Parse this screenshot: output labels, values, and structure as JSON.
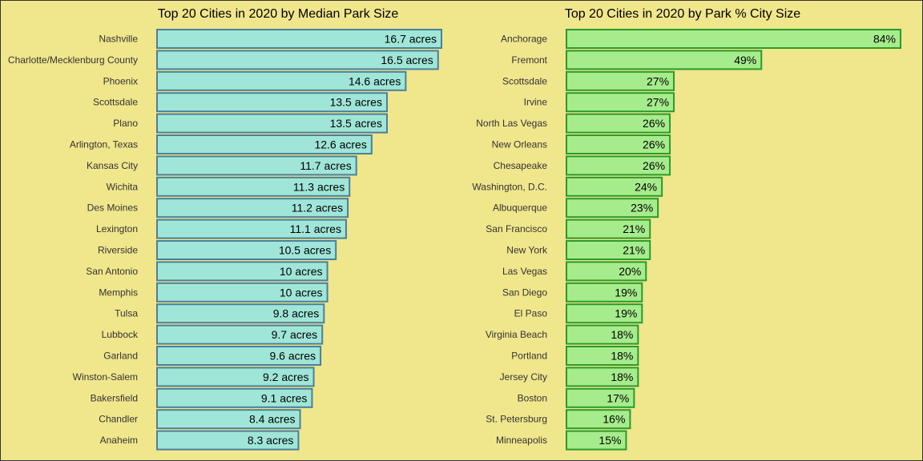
{
  "chart_data": [
    {
      "type": "bar",
      "orientation": "horizontal",
      "title": "Top 20 Cities in 2020 by Median Park Size",
      "categories": [
        "Nashville",
        "Charlotte/Mecklenburg County",
        "Phoenix",
        "Scottsdale",
        "Plano",
        "Arlington, Texas",
        "Kansas City",
        "Wichita",
        "Des Moines",
        "Lexington",
        "Riverside",
        "San Antonio",
        "Memphis",
        "Tulsa",
        "Lubbock",
        "Garland",
        "Winston-Salem",
        "Bakersfield",
        "Chandler",
        "Anaheim"
      ],
      "values": [
        16.7,
        16.5,
        14.6,
        13.5,
        13.5,
        12.6,
        11.7,
        11.3,
        11.2,
        11.1,
        10.5,
        10,
        10,
        9.8,
        9.7,
        9.6,
        9.2,
        9.1,
        8.4,
        8.3
      ],
      "value_labels": [
        "16.7 acres",
        "16.5 acres",
        "14.6 acres",
        "13.5 acres",
        "13.5 acres",
        "12.6 acres",
        "11.7 acres",
        "11.3 acres",
        "11.2 acres",
        "11.1 acres",
        "10.5 acres",
        "10 acres",
        "10 acres",
        "9.8 acres",
        "9.7 acres",
        "9.6 acres",
        "9.2 acres",
        "9.1 acres",
        "8.4 acres",
        "8.3 acres"
      ],
      "xlim": [
        0,
        16.7
      ],
      "grid": false,
      "colors": {
        "fill": "#a0e6d8",
        "stroke": "#4a7f9a"
      }
    },
    {
      "type": "bar",
      "orientation": "horizontal",
      "title": "Top 20 Cities in 2020 by Park % City Size",
      "categories": [
        "Anchorage",
        "Fremont",
        "Scottsdale",
        "Irvine",
        "North Las Vegas",
        "New Orleans",
        "Chesapeake",
        "Washington, D.C.",
        "Albuquerque",
        "San Francisco",
        "New York",
        "Las Vegas",
        "San Diego",
        "El Paso",
        "Virginia Beach",
        "Portland",
        "Jersey City",
        "Boston",
        "St. Petersburg",
        "Minneapolis"
      ],
      "values": [
        84,
        49,
        27,
        27,
        26,
        26,
        26,
        24,
        23,
        21,
        21,
        20,
        19,
        19,
        18,
        18,
        18,
        17,
        16,
        15
      ],
      "value_labels": [
        "84%",
        "49%",
        "27%",
        "27%",
        "26%",
        "26%",
        "26%",
        "24%",
        "23%",
        "21%",
        "21%",
        "20%",
        "19%",
        "19%",
        "18%",
        "18%",
        "18%",
        "17%",
        "16%",
        "15%"
      ],
      "xlim": [
        0,
        84
      ],
      "grid": false,
      "colors": {
        "fill": "#a6ec8c",
        "stroke": "#2a9a2a"
      }
    }
  ]
}
